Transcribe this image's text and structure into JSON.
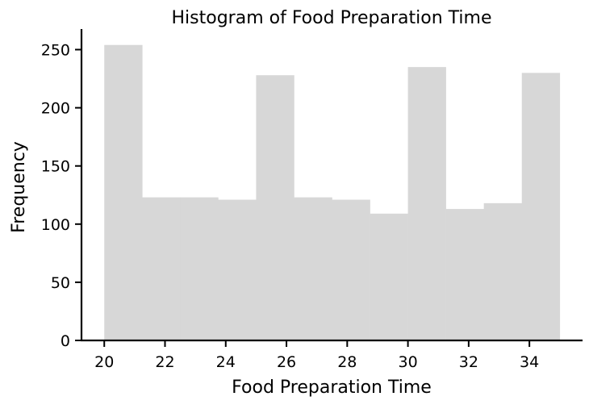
{
  "chart_data": {
    "type": "bar",
    "title": "Histogram of Food Preparation Time",
    "xlabel": "Food Preparation Time",
    "ylabel": "Frequency",
    "bins": [
      {
        "start": 20.0,
        "end": 21.25,
        "value": 254
      },
      {
        "start": 21.25,
        "end": 22.5,
        "value": 123
      },
      {
        "start": 22.5,
        "end": 23.75,
        "value": 123
      },
      {
        "start": 23.75,
        "end": 25.0,
        "value": 121
      },
      {
        "start": 25.0,
        "end": 26.25,
        "value": 228
      },
      {
        "start": 26.25,
        "end": 27.5,
        "value": 123
      },
      {
        "start": 27.5,
        "end": 28.75,
        "value": 121
      },
      {
        "start": 28.75,
        "end": 30.0,
        "value": 109
      },
      {
        "start": 30.0,
        "end": 31.25,
        "value": 235
      },
      {
        "start": 31.25,
        "end": 32.5,
        "value": 113
      },
      {
        "start": 32.5,
        "end": 33.75,
        "value": 118
      },
      {
        "start": 33.75,
        "end": 35.0,
        "value": 230
      }
    ],
    "xticks": [
      20,
      22,
      24,
      26,
      28,
      30,
      32,
      34
    ],
    "yticks": [
      0,
      50,
      100,
      150,
      200,
      250
    ],
    "xlim": [
      19.25,
      35.75
    ],
    "ylim": [
      0,
      267
    ],
    "bar_color": "#d7d7d7",
    "axis_color": "#000000",
    "grid": false,
    "legend": "none"
  }
}
